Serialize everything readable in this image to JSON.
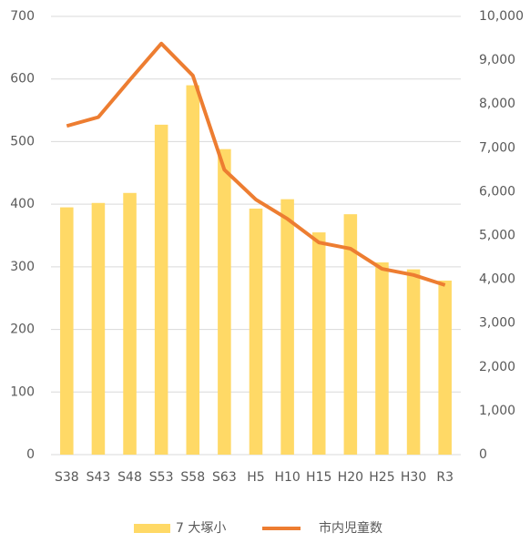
{
  "chart_data": {
    "type": "combo",
    "categories": [
      "S38",
      "S43",
      "S48",
      "S53",
      "S58",
      "S63",
      "H5",
      "H10",
      "H15",
      "H20",
      "H25",
      "H30",
      "R3"
    ],
    "series": [
      {
        "name": "7 大塚小",
        "type": "bar",
        "axis": "y",
        "color": "#ffd966",
        "values": [
          395,
          402,
          418,
          527,
          590,
          488,
          393,
          408,
          355,
          384,
          307,
          296,
          278
        ]
      },
      {
        "name": "市内児童数",
        "type": "line",
        "axis": "y2",
        "color": "#ed7d31",
        "values": [
          7500,
          7700,
          8550,
          9380,
          8650,
          6500,
          5820,
          5380,
          4840,
          4700,
          4240,
          4100,
          3870
        ]
      }
    ],
    "ylim": [
      0,
      700
    ],
    "yticks": [
      0,
      100,
      200,
      300,
      400,
      500,
      600,
      700
    ],
    "y2lim": [
      0,
      10000
    ],
    "y2ticks": [
      0,
      {
        "value": 1000,
        "label": "1,000"
      },
      {
        "value": 2000,
        "label": "2,000"
      },
      {
        "value": 3000,
        "label": "3,000"
      },
      {
        "value": 4000,
        "label": "4,000"
      },
      {
        "value": 5000,
        "label": "5,000"
      },
      {
        "value": 6000,
        "label": "6,000"
      },
      {
        "value": 7000,
        "label": "7,000"
      },
      {
        "value": 8000,
        "label": "8,000"
      },
      {
        "value": 9000,
        "label": "9,000"
      },
      {
        "value": 10000,
        "label": "10,000"
      }
    ],
    "grid": true,
    "legend": "bottom"
  }
}
